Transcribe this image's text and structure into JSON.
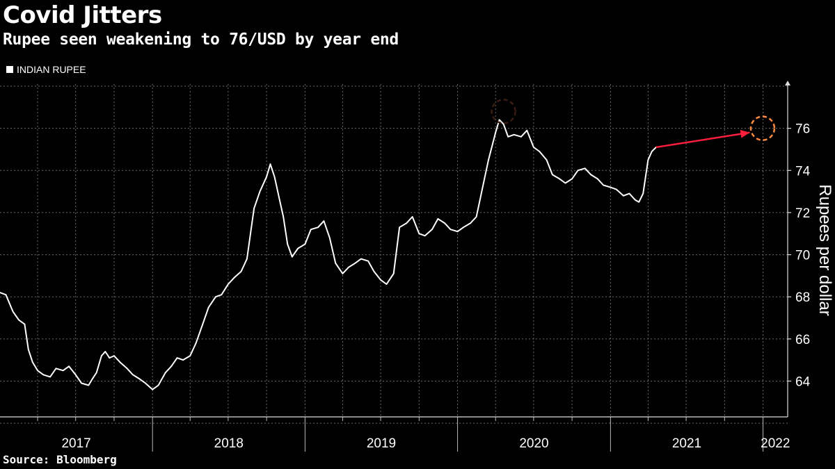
{
  "header": {
    "title": "Covid Jitters",
    "subtitle": "Rupee seen weakening to 76/USD by year end"
  },
  "footer": {
    "source": "Source: Bloomberg"
  },
  "colors": {
    "background": "#000000",
    "line": "#ffffff",
    "grid": "#6b6b6b",
    "forecast_arrow": "#ff1f3d",
    "forecast_circle": "#ff8a3d",
    "peak_circle": "#3a1d12"
  },
  "chart_data": {
    "type": "line",
    "title": "Covid Jitters",
    "subtitle": "Rupee seen weakening to 76/USD by year end",
    "ylabel": "Rupees per dollar",
    "xlabel": "",
    "legend": {
      "entries": [
        "INDIAN RUPEE"
      ],
      "placement": "top-left"
    },
    "ylim": [
      62.3,
      78.1
    ],
    "yticks": [
      64,
      66,
      68,
      70,
      72,
      74,
      76
    ],
    "xlim": [
      "2017-01-01",
      "2022-03-01"
    ],
    "x_tick_labels": [
      "2017",
      "2018",
      "2019",
      "2020",
      "2021",
      "2022"
    ],
    "grid": true,
    "series": [
      {
        "name": "INDIAN RUPEE",
        "x": [
          "2017-01-01",
          "2017-01-15",
          "2017-02-01",
          "2017-02-15",
          "2017-03-01",
          "2017-03-10",
          "2017-03-20",
          "2017-04-01",
          "2017-04-15",
          "2017-05-01",
          "2017-05-15",
          "2017-06-01",
          "2017-06-15",
          "2017-07-01",
          "2017-07-15",
          "2017-08-01",
          "2017-08-10",
          "2017-08-20",
          "2017-09-01",
          "2017-09-10",
          "2017-09-20",
          "2017-10-01",
          "2017-10-15",
          "2017-11-01",
          "2017-11-15",
          "2017-12-01",
          "2017-12-15",
          "2018-01-01",
          "2018-01-15",
          "2018-02-01",
          "2018-02-15",
          "2018-03-01",
          "2018-03-15",
          "2018-04-01",
          "2018-04-15",
          "2018-05-01",
          "2018-05-15",
          "2018-06-01",
          "2018-06-15",
          "2018-07-01",
          "2018-07-15",
          "2018-08-01",
          "2018-08-15",
          "2018-09-01",
          "2018-09-15",
          "2018-10-01",
          "2018-10-10",
          "2018-10-20",
          "2018-11-01",
          "2018-11-10",
          "2018-11-20",
          "2018-12-01",
          "2018-12-15",
          "2019-01-01",
          "2019-01-15",
          "2019-02-01",
          "2019-02-15",
          "2019-03-01",
          "2019-03-15",
          "2019-04-01",
          "2019-04-15",
          "2019-05-01",
          "2019-05-15",
          "2019-06-01",
          "2019-06-15",
          "2019-07-01",
          "2019-07-15",
          "2019-08-01",
          "2019-08-15",
          "2019-09-01",
          "2019-09-15",
          "2019-10-01",
          "2019-10-15",
          "2019-11-01",
          "2019-11-15",
          "2019-12-01",
          "2019-12-15",
          "2020-01-01",
          "2020-01-15",
          "2020-02-01",
          "2020-02-15",
          "2020-03-01",
          "2020-03-15",
          "2020-04-01",
          "2020-04-10",
          "2020-04-20",
          "2020-05-01",
          "2020-05-15",
          "2020-06-01",
          "2020-06-15",
          "2020-07-01",
          "2020-07-15",
          "2020-08-01",
          "2020-08-15",
          "2020-09-01",
          "2020-09-15",
          "2020-10-01",
          "2020-10-15",
          "2020-11-01",
          "2020-11-15",
          "2020-12-01",
          "2020-12-15",
          "2021-01-01",
          "2021-01-15",
          "2021-02-01",
          "2021-02-15",
          "2021-03-01",
          "2021-03-10",
          "2021-03-20",
          "2021-04-01",
          "2021-04-10",
          "2021-04-20"
        ],
        "values": [
          68.2,
          68.1,
          67.3,
          66.9,
          66.7,
          65.5,
          64.9,
          64.5,
          64.3,
          64.2,
          64.6,
          64.5,
          64.7,
          64.3,
          63.9,
          63.8,
          64.1,
          64.4,
          65.2,
          65.4,
          65.1,
          65.2,
          64.9,
          64.6,
          64.3,
          64.1,
          63.9,
          63.6,
          63.8,
          64.4,
          64.7,
          65.1,
          65.0,
          65.2,
          65.8,
          66.7,
          67.5,
          68.0,
          68.1,
          68.6,
          68.9,
          69.2,
          69.8,
          72.2,
          73.0,
          73.7,
          74.3,
          73.7,
          72.6,
          71.8,
          70.5,
          69.9,
          70.3,
          70.5,
          71.2,
          71.3,
          71.6,
          70.8,
          69.6,
          69.1,
          69.4,
          69.6,
          69.8,
          69.7,
          69.2,
          68.8,
          68.6,
          69.1,
          71.3,
          71.5,
          71.8,
          71.0,
          70.9,
          71.2,
          71.7,
          71.5,
          71.2,
          71.1,
          71.3,
          71.5,
          71.8,
          73.2,
          74.5,
          75.8,
          76.4,
          76.2,
          75.6,
          75.7,
          75.6,
          75.9,
          75.1,
          74.9,
          74.5,
          73.8,
          73.6,
          73.4,
          73.6,
          74.0,
          74.1,
          73.8,
          73.6,
          73.3,
          73.2,
          73.1,
          72.8,
          72.9,
          72.6,
          72.5,
          72.9,
          74.5,
          74.9,
          75.1
        ]
      }
    ],
    "annotations": [
      {
        "type": "forecast-arrow",
        "from": {
          "x": "2021-04-20",
          "y": 75.1
        },
        "to": {
          "x": "2021-11-30",
          "y": 75.8
        }
      },
      {
        "type": "dashed-circle",
        "label": "year-end forecast",
        "x": "2021-12-31",
        "y": 76.0
      },
      {
        "type": "dashed-circle",
        "label": "record low",
        "x": "2020-04-20",
        "y": 76.8
      }
    ]
  }
}
